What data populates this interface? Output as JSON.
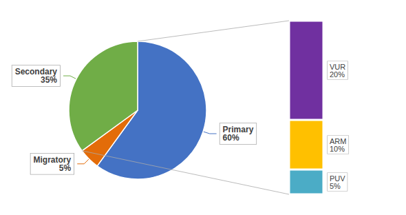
{
  "chart_data": [
    {
      "type": "pie",
      "categories": [
        "Primary",
        "Migratory",
        "Secondary"
      ],
      "values": [
        60,
        5,
        35
      ],
      "value_labels": [
        "60%",
        "5%",
        "35%"
      ],
      "colors": [
        "#4472C4",
        "#E36C09",
        "#70AD47"
      ],
      "data_labels": true
    },
    {
      "type": "bar",
      "stacked": true,
      "categories": [
        null
      ],
      "series": [
        {
          "name": "VUR",
          "color": "#7030A0",
          "values": [
            20
          ],
          "value_labels": [
            "20%"
          ]
        },
        {
          "name": "ARM",
          "color": "#FFC000",
          "values": [
            10
          ],
          "value_labels": [
            "10%"
          ]
        },
        {
          "name": "PUV",
          "color": "#4BACC6",
          "values": [
            5
          ],
          "value_labels": [
            "5%"
          ]
        }
      ],
      "data_labels": true,
      "tick_labels": false
    }
  ]
}
